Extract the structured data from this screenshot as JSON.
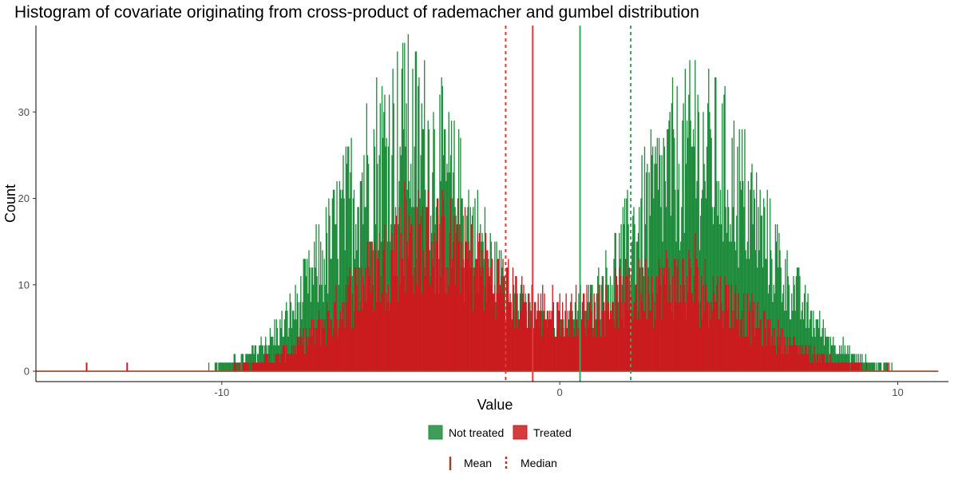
{
  "chart_data": {
    "type": "bar",
    "title": "Histogram of covariate originating from cross-product of rademacher and gumbel distribution",
    "xlabel": "Value",
    "ylabel": "Count",
    "xlim": [
      -15.5,
      11.5
    ],
    "ylim": [
      -1.2,
      40
    ],
    "x_ticks": [
      -10,
      0,
      10
    ],
    "x_tick_labels": [
      "-10",
      "0",
      "10"
    ],
    "y_ticks": [
      0,
      10,
      20,
      30
    ],
    "y_tick_labels": [
      "0",
      "10",
      "20",
      "30"
    ],
    "grid": false,
    "bin_range": [
      -15.5,
      11.2
    ],
    "series": [
      {
        "name": "Not treated",
        "color": "#1e8c3c",
        "outlier_values": [
          9.3
        ],
        "mean": 0.6,
        "median": 2.1
      },
      {
        "name": "Treated",
        "color": "#cc1a1e",
        "outlier_values": [
          -14.0,
          -12.8,
          -9.6,
          9.7
        ],
        "mean": -0.8,
        "median": -1.6
      }
    ],
    "approx_peaks": [
      {
        "x": -4.6,
        "not_treated": 38,
        "treated": 22
      },
      {
        "x": 4.0,
        "not_treated": 36,
        "treated": 16
      }
    ],
    "legend": {
      "placement": "bottom",
      "fill_entries": [
        "Not treated",
        "Treated"
      ],
      "line_entries": [
        "Mean",
        "Median"
      ]
    }
  }
}
